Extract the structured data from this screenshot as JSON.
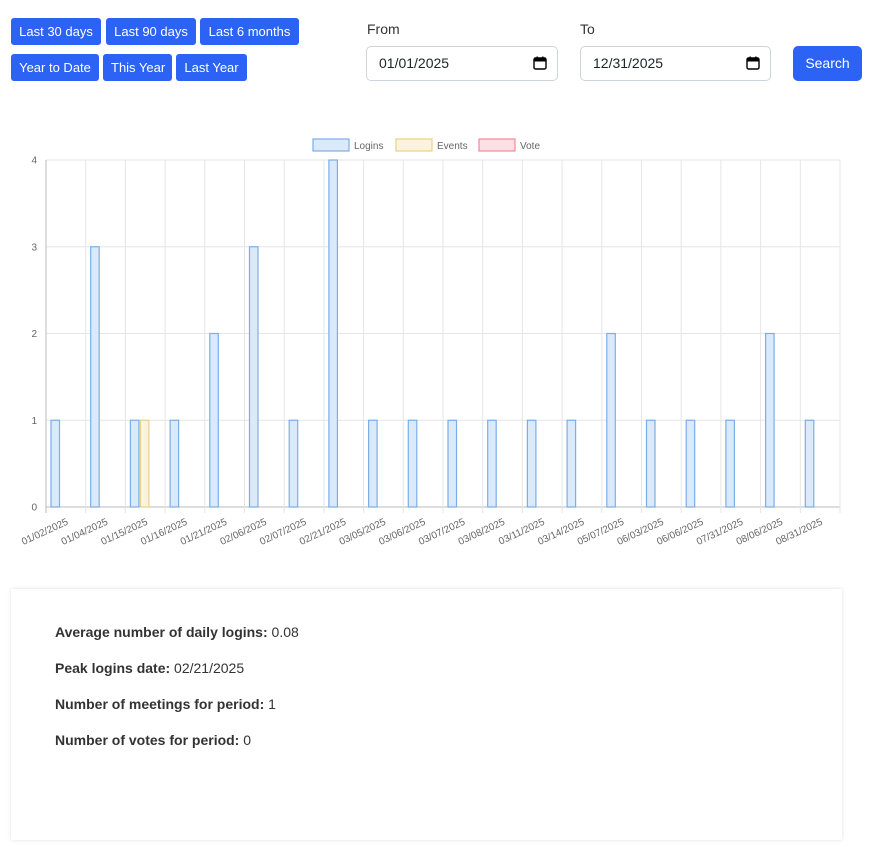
{
  "quick_ranges": [
    "Last 30 days",
    "Last 90 days",
    "Last 6 months",
    "Year to Date",
    "This Year",
    "Last Year"
  ],
  "date_filter": {
    "from_label": "From",
    "from_value": "01/01/2025",
    "to_label": "To",
    "to_value": "12/31/2025",
    "search_label": "Search"
  },
  "chart_data": {
    "type": "bar",
    "categories": [
      "01/02/2025",
      "01/04/2025",
      "01/15/2025",
      "01/16/2025",
      "01/21/2025",
      "02/06/2025",
      "02/07/2025",
      "02/21/2025",
      "03/05/2025",
      "03/06/2025",
      "03/07/2025",
      "03/08/2025",
      "03/11/2025",
      "03/14/2025",
      "05/07/2025",
      "06/03/2025",
      "06/06/2025",
      "07/31/2025",
      "08/06/2025",
      "08/31/2025"
    ],
    "series": [
      {
        "name": "Logins",
        "values": [
          1,
          3,
          1,
          1,
          2,
          3,
          1,
          4,
          1,
          1,
          1,
          1,
          1,
          1,
          2,
          1,
          1,
          1,
          2,
          1
        ],
        "fill": "#dbeafb",
        "stroke": "#7aaee8"
      },
      {
        "name": "Events",
        "values": [
          0,
          0,
          1,
          0,
          0,
          0,
          0,
          0,
          0,
          0,
          0,
          0,
          0,
          0,
          0,
          0,
          0,
          0,
          0,
          0
        ],
        "fill": "#fbf3dc",
        "stroke": "#e8cf8a"
      },
      {
        "name": "Vote",
        "values": [
          0,
          0,
          0,
          0,
          0,
          0,
          0,
          0,
          0,
          0,
          0,
          0,
          0,
          0,
          0,
          0,
          0,
          0,
          0,
          0
        ],
        "fill": "#fde0e4",
        "stroke": "#f08a9a"
      }
    ],
    "ylim": [
      0,
      4
    ],
    "yticks": [
      0,
      1,
      2,
      3,
      4
    ],
    "grid": true,
    "legend": "top"
  },
  "stats": [
    {
      "label": "Average number of daily logins:",
      "value": "0.08"
    },
    {
      "label": "Peak logins date:",
      "value": "02/21/2025"
    },
    {
      "label": "Number of meetings for period:",
      "value": "1"
    },
    {
      "label": "Number of votes for period:",
      "value": "0"
    }
  ]
}
